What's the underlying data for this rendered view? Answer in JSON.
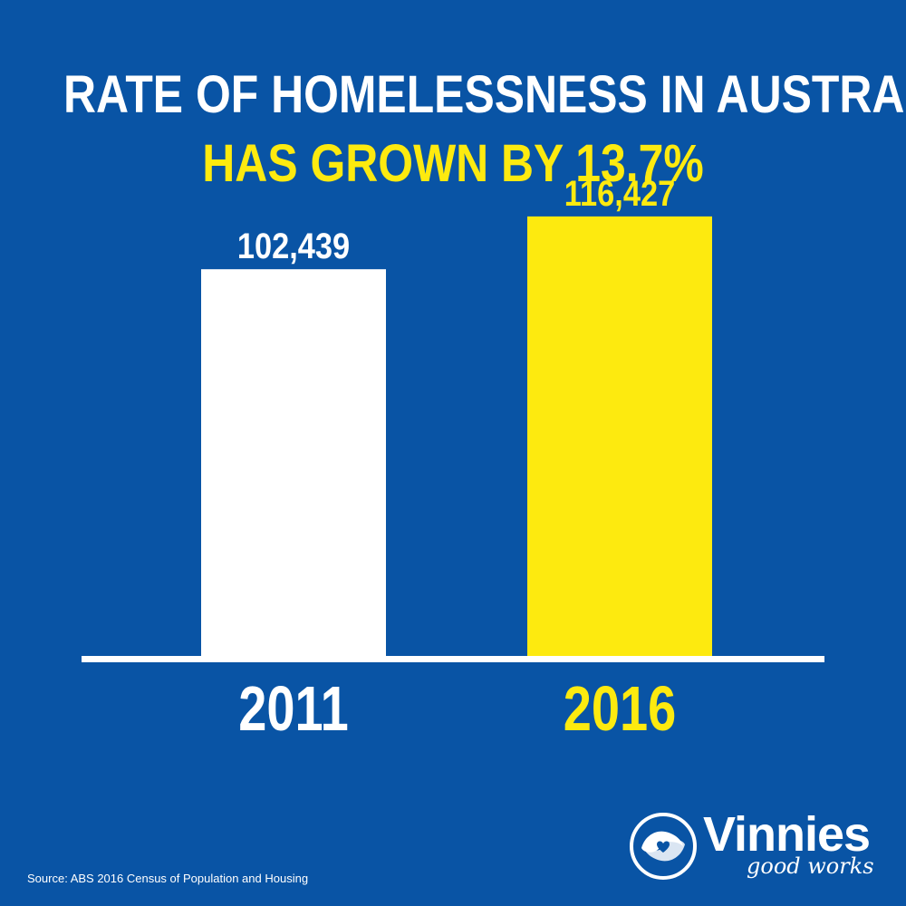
{
  "header": {
    "title": "RATE OF HOMELESSNESS IN AUSTRALIA",
    "subtitle": "HAS GROWN BY 13.7%"
  },
  "colors": {
    "background": "#0954A5",
    "primary_bar": "#FFFFFF",
    "highlight": "#FDEA0F",
    "text": "#FFFFFF"
  },
  "chart_data": {
    "type": "bar",
    "title": "RATE OF HOMELESSNESS IN AUSTRALIA",
    "subtitle": "HAS GROWN BY 13.7%",
    "categories": [
      "2011",
      "2016"
    ],
    "values": [
      102439,
      116427
    ],
    "value_labels": [
      "102,439",
      "116,427"
    ],
    "bar_colors": [
      "#FFFFFF",
      "#FDEA0F"
    ],
    "xlabel": "",
    "ylabel": "",
    "ylim": [
      0,
      120000
    ],
    "grid": false,
    "legend": "none"
  },
  "footer": {
    "source": "Source: ABS 2016 Census of Population and Housing"
  },
  "brand": {
    "name": "Vinnies",
    "tagline": "good works",
    "logo_icon": "hands-heart-logo-icon"
  }
}
